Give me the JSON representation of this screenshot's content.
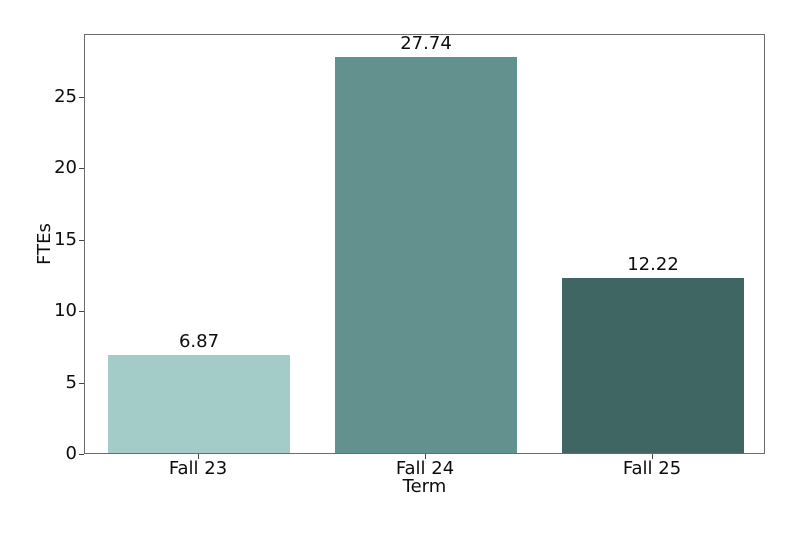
{
  "chart_data": {
    "type": "bar",
    "categories": [
      "Fall 23",
      "Fall 24",
      "Fall 25"
    ],
    "values": [
      6.87,
      27.74,
      12.22
    ],
    "value_labels": [
      "6.87",
      "27.74",
      "12.22"
    ],
    "bar_colors": [
      "#a3ccc8",
      "#62918e",
      "#3f6663"
    ],
    "title": "",
    "xlabel": "Term",
    "ylabel": "FTEs",
    "ylim": [
      0,
      29.4
    ],
    "yticks": [
      0,
      5,
      10,
      15,
      20,
      25
    ],
    "ytick_labels": [
      "0",
      "5",
      "10",
      "15",
      "20",
      "25"
    ],
    "grid": false,
    "legend": false,
    "data_labels": true,
    "background_color": "#ffffff",
    "frame_color": "#6b6b6b"
  }
}
